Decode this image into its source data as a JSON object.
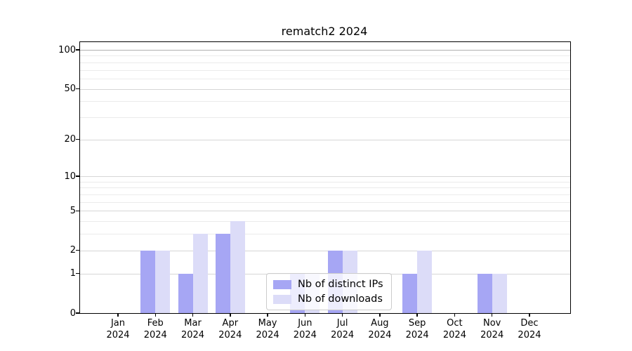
{
  "title": "rematch2 2024",
  "colors": {
    "ips_bar": "#a6a6f4",
    "downloads_bar": "#dcdcf8",
    "grid_major": "#d6d6d6",
    "grid_minor": "#ebebeb",
    "grid_top": "#b0b0b0",
    "spine": "#000000"
  },
  "legend": {
    "items": [
      {
        "label": "Nb of distinct IPs",
        "series": "ips"
      },
      {
        "label": "Nb of downloads",
        "series": "downloads"
      }
    ]
  },
  "chart_data": {
    "type": "bar",
    "title": "rematch2 2024",
    "categories": [
      "Jan 2024",
      "Feb 2024",
      "Mar 2024",
      "Apr 2024",
      "May 2024",
      "Jun 2024",
      "Jul 2024",
      "Aug 2024",
      "Sep 2024",
      "Oct 2024",
      "Nov 2024",
      "Dec 2024"
    ],
    "xtick_lines": [
      [
        "Jan",
        "2024"
      ],
      [
        "Feb",
        "2024"
      ],
      [
        "Mar",
        "2024"
      ],
      [
        "Apr",
        "2024"
      ],
      [
        "May",
        "2024"
      ],
      [
        "Jun",
        "2024"
      ],
      [
        "Jul",
        "2024"
      ],
      [
        "Aug",
        "2024"
      ],
      [
        "Sep",
        "2024"
      ],
      [
        "Oct",
        "2024"
      ],
      [
        "Nov",
        "2024"
      ],
      [
        "Dec",
        "2024"
      ]
    ],
    "series": [
      {
        "name": "Nb of distinct IPs",
        "color": "#a6a6f4",
        "values": [
          0,
          2,
          1,
          3,
          0,
          1,
          2,
          0,
          1,
          0,
          1,
          0
        ]
      },
      {
        "name": "Nb of downloads",
        "color": "#dcdcf8",
        "values": [
          0,
          2,
          3,
          4,
          0,
          1,
          2,
          0,
          2,
          0,
          1,
          0
        ]
      }
    ],
    "xlabel": "",
    "ylabel": "",
    "yscale": "log1p",
    "yticks_major": [
      0,
      1,
      2,
      5,
      10,
      20,
      50,
      100
    ],
    "yticks_minor": [
      3,
      4,
      6,
      7,
      8,
      9,
      30,
      40,
      60,
      70,
      80,
      90
    ],
    "ylim": [
      0,
      115
    ],
    "grid": "on",
    "legend_position": "lower center"
  }
}
